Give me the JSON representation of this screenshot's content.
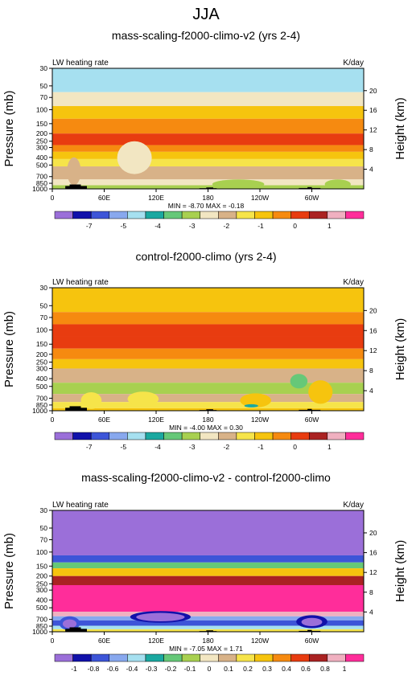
{
  "page_title": "JJA",
  "chart_data": [
    {
      "type": "heatmap",
      "title": "mass-scaling-f2000-climo-v2 (yrs 2-4)",
      "left_label": "LW heating rate",
      "right_label": "K/day",
      "ylabel": "Pressure (mb)",
      "ylabel_right": "Height (km)",
      "x_ticks": [
        "0",
        "60E",
        "120E",
        "180",
        "120W",
        "60W"
      ],
      "y_ticks": [
        "30",
        "50",
        "70",
        "100",
        "150",
        "200",
        "250",
        "300",
        "400",
        "500",
        "700",
        "850",
        "1000"
      ],
      "y_right_ticks": [
        "20",
        "16",
        "12",
        "8",
        "4"
      ],
      "ylim": [
        1000,
        30
      ],
      "stats": "MIN = -8.70  MAX = -0.18",
      "min": -8.7,
      "max": -0.18,
      "colorbar": {
        "labels": [
          "-7",
          "-5",
          "-4",
          "-3",
          "-2",
          "-1",
          "0",
          "1"
        ],
        "colors": [
          "#9b6fd9",
          "#1111aa",
          "#3d55d8",
          "#88a8ee",
          "#a6e0f0",
          "#1aa8a0",
          "#66c878",
          "#a8d050",
          "#f2e6c2",
          "#d8b288",
          "#f6e44a",
          "#f6c40e",
          "#f68a10",
          "#e83c10",
          "#aa2222",
          "#f0b0c0",
          "#ff2d9a"
        ]
      }
    },
    {
      "type": "heatmap",
      "title": "control-f2000-climo (yrs 2-4)",
      "left_label": "LW heating rate",
      "right_label": "K/day",
      "ylabel": "Pressure (mb)",
      "ylabel_right": "Height (km)",
      "x_ticks": [
        "0",
        "60E",
        "120E",
        "180",
        "120W",
        "60W"
      ],
      "y_ticks": [
        "30",
        "50",
        "70",
        "100",
        "150",
        "200",
        "250",
        "300",
        "400",
        "500",
        "700",
        "850",
        "1000"
      ],
      "y_right_ticks": [
        "20",
        "16",
        "12",
        "8",
        "4"
      ],
      "ylim": [
        1000,
        30
      ],
      "stats": "MIN = -4.00  MAX = 0.30",
      "min": -4.0,
      "max": 0.3,
      "colorbar": {
        "labels": [
          "-7",
          "-5",
          "-4",
          "-3",
          "-2",
          "-1",
          "0",
          "1"
        ],
        "colors": [
          "#9b6fd9",
          "#1111aa",
          "#3d55d8",
          "#88a8ee",
          "#a6e0f0",
          "#1aa8a0",
          "#66c878",
          "#a8d050",
          "#f2e6c2",
          "#d8b288",
          "#f6e44a",
          "#f6c40e",
          "#f68a10",
          "#e83c10",
          "#aa2222",
          "#f0b0c0",
          "#ff2d9a"
        ]
      }
    },
    {
      "type": "heatmap",
      "title": "mass-scaling-f2000-climo-v2 - control-f2000-climo",
      "left_label": "LW heating rate",
      "right_label": "K/day",
      "ylabel": "Pressure (mb)",
      "ylabel_right": "Height (km)",
      "x_ticks": [
        "0",
        "60E",
        "120E",
        "180",
        "120W",
        "60W"
      ],
      "y_ticks": [
        "30",
        "50",
        "70",
        "100",
        "150",
        "200",
        "250",
        "300",
        "400",
        "500",
        "700",
        "850",
        "1000"
      ],
      "y_right_ticks": [
        "20",
        "16",
        "12",
        "8",
        "4"
      ],
      "ylim": [
        1000,
        30
      ],
      "stats": "MIN = -7.05  MAX =  1.71",
      "min": -7.05,
      "max": 1.71,
      "colorbar": {
        "labels": [
          "-1",
          "-0.8",
          "-0.6",
          "-0.4",
          "-0.3",
          "-0.2",
          "-0.1",
          "0",
          "0.1",
          "0.2",
          "0.3",
          "0.4",
          "0.6",
          "0.8",
          "1"
        ],
        "colors": [
          "#9b6fd9",
          "#1111aa",
          "#3d55d8",
          "#88a8ee",
          "#a6e0f0",
          "#1aa8a0",
          "#66c878",
          "#a8d050",
          "#f2e6c2",
          "#d8b288",
          "#f6e44a",
          "#f6c40e",
          "#f68a10",
          "#e83c10",
          "#aa2222",
          "#f0b0c0",
          "#ff2d9a"
        ]
      }
    }
  ]
}
